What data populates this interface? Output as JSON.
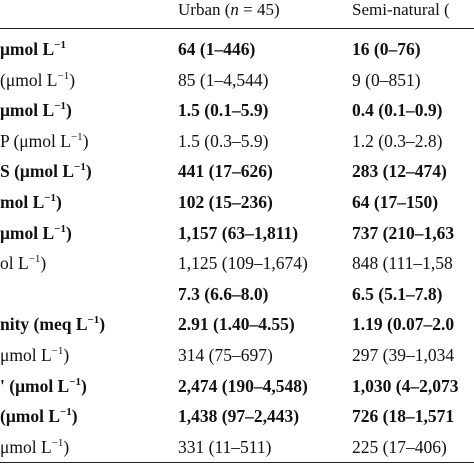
{
  "table": {
    "headers": {
      "urban": "Urban (",
      "urban_n": "n",
      "urban_eq": " = 45)",
      "seminatural": "Semi-natural ("
    },
    "rows": [
      {
        "label": "μmol L",
        "sup": "−1",
        "urban": "64 (1–446)",
        "semi": "16 (0–76)",
        "bold": true
      },
      {
        "label": "(μmol L",
        "sup": "−1",
        "label_end": ")",
        "urban": "85 (1–4,544)",
        "semi": "9 (0–851)",
        "bold": false
      },
      {
        "label": "μmol L",
        "sup": "−1",
        "label_end": ")",
        "urban": "1.5 (0.1–5.9)",
        "semi": "0.4 (0.1–0.9)",
        "bold": true
      },
      {
        "label": "P (μmol L",
        "sup": "−1",
        "label_end": ")",
        "urban": "1.5 (0.3–5.9)",
        "semi": "1.2 (0.3–2.8)",
        "bold": false
      },
      {
        "label": "S (μmol L",
        "sup": "−1",
        "label_end": ")",
        "urban": "441 (17–626)",
        "semi": "283 (12–474)",
        "bold": true
      },
      {
        "label": "mol L",
        "sup": "−1",
        "label_end": ")",
        "urban": "102 (15–236)",
        "semi": "64 (17–150)",
        "bold": true
      },
      {
        "label": "μmol L",
        "sup": "−1",
        "label_end": ")",
        "urban": "1,157 (63–1,811)",
        "semi": "737 (210–1,63",
        "bold": true
      },
      {
        "label": "ol L",
        "sup": "−1",
        "label_end": ")",
        "urban": "1,125 (109–1,674)",
        "semi": "848 (111–1,58",
        "bold": false
      },
      {
        "label": "",
        "sup": "",
        "label_end": "",
        "urban": "7.3 (6.6–8.0)",
        "semi": "6.5 (5.1–7.8)",
        "bold": true
      },
      {
        "label": "nity (meq L",
        "sup": "−1",
        "label_end": ")",
        "urban": "2.91 (1.40–4.55)",
        "semi": "1.19 (0.07–2.0",
        "bold": true
      },
      {
        "label": "μmol L",
        "sup": "−1",
        "label_end": ")",
        "urban": "314 (75–697)",
        "semi": "297 (39–1,034",
        "bold": false
      },
      {
        "label": "' (μmol L",
        "sup": "−1",
        "label_end": ")",
        "urban": "2,474 (190–4,548)",
        "semi": "1,030 (4–2,073",
        "bold": true
      },
      {
        "label": "(μmol L",
        "sup": "−1",
        "label_end": ")",
        "urban": "1,438 (97–2,443)",
        "semi": "726 (18–1,571",
        "bold": true
      },
      {
        "label": "μmol L",
        "sup": "−1",
        "label_end": ")",
        "urban": "331 (11–511)",
        "semi": "225 (17–406)",
        "bold": false
      }
    ]
  }
}
